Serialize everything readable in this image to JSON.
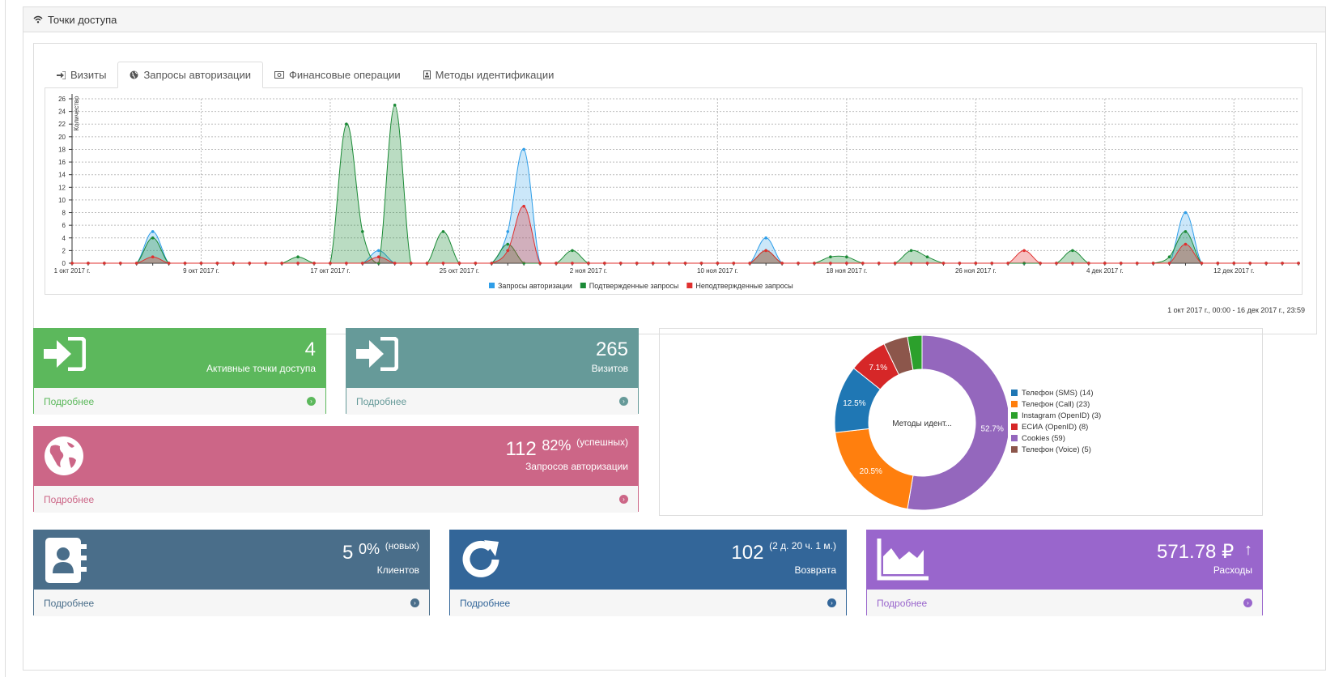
{
  "panel": {
    "title": "Точки доступа",
    "icon": "wifi-icon"
  },
  "tabs": [
    {
      "label": "Визиты",
      "icon": "sign-in-icon",
      "active": false
    },
    {
      "label": "Запросы авторизации",
      "icon": "globe-icon",
      "active": true
    },
    {
      "label": "Финансовые операции",
      "icon": "money-icon",
      "active": false
    },
    {
      "label": "Методы идентификации",
      "icon": "id-card-icon",
      "active": false
    }
  ],
  "chart_data": [
    {
      "type": "area",
      "ylabel": "Количество",
      "ylim": [
        0,
        26
      ],
      "yticks": [
        0,
        2,
        4,
        6,
        8,
        10,
        12,
        14,
        16,
        18,
        20,
        22,
        24,
        26
      ],
      "xtick_labels": [
        "1 окт 2017 г.",
        "9 окт 2017 г.",
        "17 окт 2017 г.",
        "25 окт 2017 г.",
        "2 ноя 2017 г.",
        "10 ноя 2017 г.",
        "18 ноя 2017 г.",
        "26 ноя 2017 г.",
        "4 дек 2017 г.",
        "12 дек 2017 г."
      ],
      "x_start": "2017-10-01",
      "x_end": "2017-12-16",
      "grid": true,
      "legend_position": "bottom",
      "series": [
        {
          "name": "Запросы авторизации",
          "color": "#2f9ee8",
          "points": [
            [
              "2017-10-06",
              5
            ],
            [
              "2017-10-20",
              2
            ],
            [
              "2017-10-28",
              5
            ],
            [
              "2017-10-29",
              18
            ],
            [
              "2017-11-13",
              4
            ],
            [
              "2017-12-09",
              8
            ]
          ]
        },
        {
          "name": "Подтвержденные запросы",
          "color": "#1b8a36",
          "points": [
            [
              "2017-10-06",
              4
            ],
            [
              "2017-10-15",
              1
            ],
            [
              "2017-10-18",
              22
            ],
            [
              "2017-10-19",
              5
            ],
            [
              "2017-10-21",
              25
            ],
            [
              "2017-10-24",
              5
            ],
            [
              "2017-10-28",
              3
            ],
            [
              "2017-11-01",
              2
            ],
            [
              "2017-11-13",
              2
            ],
            [
              "2017-11-17",
              1
            ],
            [
              "2017-11-18",
              1
            ],
            [
              "2017-11-22",
              2
            ],
            [
              "2017-11-23",
              1
            ],
            [
              "2017-12-02",
              2
            ],
            [
              "2017-12-08",
              1
            ],
            [
              "2017-12-09",
              5
            ]
          ]
        },
        {
          "name": "Неподтвержденные запросы",
          "color": "#e0302f",
          "points": [
            [
              "2017-10-06",
              1
            ],
            [
              "2017-10-20",
              1
            ],
            [
              "2017-10-28",
              2
            ],
            [
              "2017-10-29",
              9
            ],
            [
              "2017-11-13",
              2
            ],
            [
              "2017-11-29",
              2
            ],
            [
              "2017-12-09",
              3
            ]
          ]
        }
      ]
    },
    {
      "type": "pie",
      "center_label": "Методы идент...",
      "slices": [
        {
          "name": "Телефон (SMS) (14)",
          "value": 14,
          "color": "#1f77b4",
          "label": "12.5%"
        },
        {
          "name": "Телефон (Call) (23)",
          "value": 23,
          "color": "#ff7f0e",
          "label": "20.5%"
        },
        {
          "name": "Instagram (OpenID) (3)",
          "value": 3,
          "color": "#2ca02c",
          "label": ""
        },
        {
          "name": "ЕСИА (OpenID) (8)",
          "value": 8,
          "color": "#d62728",
          "label": "7.1%"
        },
        {
          "name": "Cookies (59)",
          "value": 59,
          "color": "#9467bd",
          "label": "52.7%"
        },
        {
          "name": "Телефон (Voice) (5)",
          "value": 5,
          "color": "#8c564b",
          "label": ""
        }
      ],
      "legend_position": "right"
    }
  ],
  "date_range": "1 окт 2017 г., 00:00 - 16 дек 2017 г., 23:59",
  "tiles": {
    "active_points": {
      "value": "4",
      "label": "Активные точки доступа",
      "more": "Подробнее",
      "color": "#5cb85c"
    },
    "visits": {
      "value": "265",
      "label": "Визитов",
      "more": "Подробнее",
      "color": "#669a99"
    },
    "auth": {
      "value": "112",
      "percent": "82%",
      "note": "(успешных)",
      "label": "Запросов авторизации",
      "more": "Подробнее",
      "color": "#cc6687"
    },
    "clients": {
      "value": "5",
      "percent": "0%",
      "note": "(новых)",
      "label": "Клиентов",
      "more": "Подробнее",
      "color": "#4a6e8a"
    },
    "returns": {
      "value": "102",
      "note": "(2 д. 20 ч. 1 м.)",
      "label": "Возврата",
      "more": "Подробнее",
      "color": "#336699"
    },
    "expenses": {
      "value": "571.78 ₽",
      "arrow": "↑",
      "label": "Расходы",
      "more": "Подробнее",
      "color": "#9966cc"
    }
  }
}
